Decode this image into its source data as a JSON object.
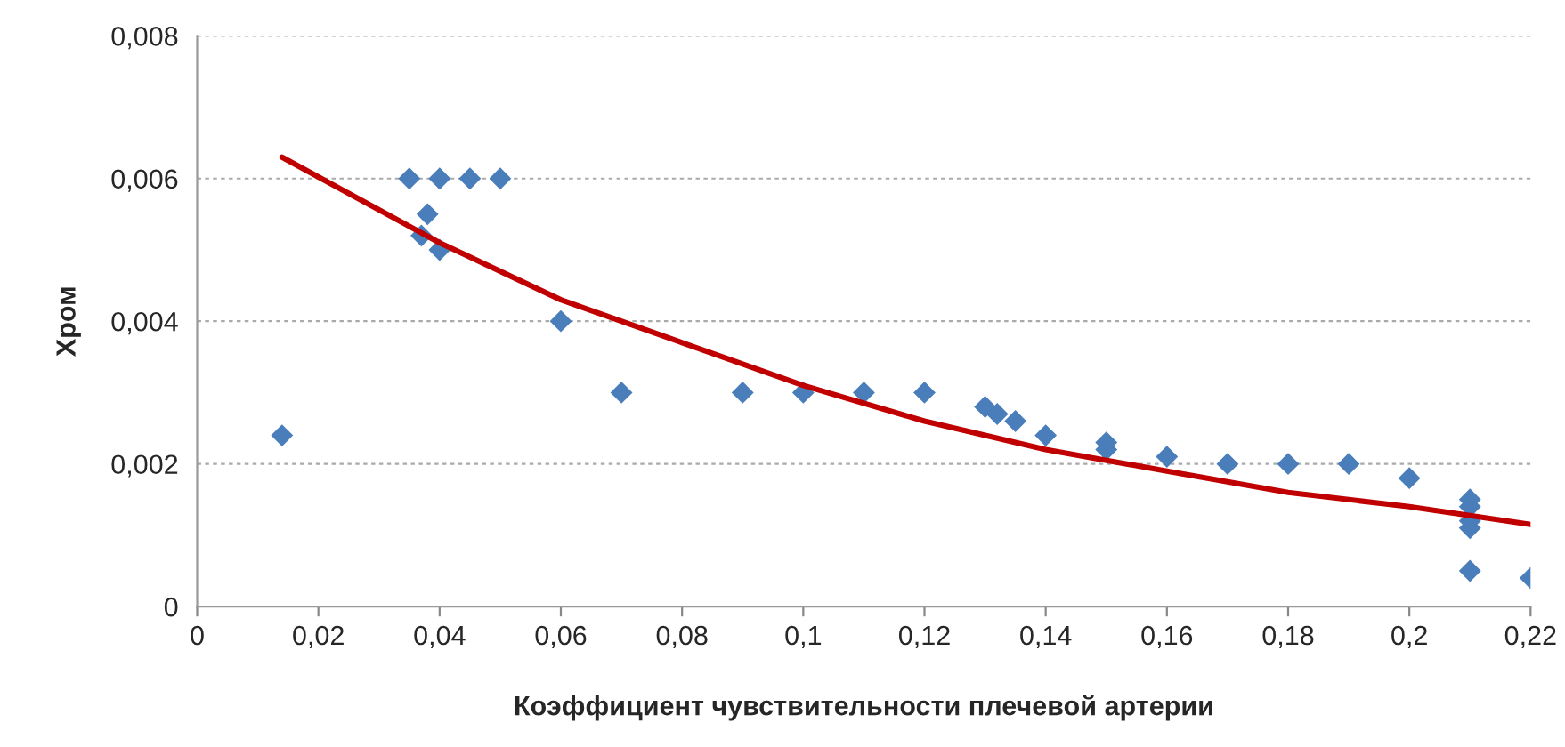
{
  "chart_data": {
    "type": "scatter",
    "xlabel": "Коэффициент чувствительности плечевой артерии",
    "ylabel": "Хром",
    "xlim": [
      0,
      0.22
    ],
    "ylim": [
      0,
      0.008
    ],
    "xticks": [
      {
        "value": 0,
        "label": "0"
      },
      {
        "value": 0.02,
        "label": "0,02"
      },
      {
        "value": 0.04,
        "label": "0,04"
      },
      {
        "value": 0.06,
        "label": "0,06"
      },
      {
        "value": 0.08,
        "label": "0,08"
      },
      {
        "value": 0.1,
        "label": "0,1"
      },
      {
        "value": 0.12,
        "label": "0,12"
      },
      {
        "value": 0.14,
        "label": "0,14"
      },
      {
        "value": 0.16,
        "label": "0,16"
      },
      {
        "value": 0.18,
        "label": "0,18"
      },
      {
        "value": 0.2,
        "label": "0,2"
      },
      {
        "value": 0.22,
        "label": "0,22"
      }
    ],
    "yticks": [
      {
        "value": 0,
        "label": "0"
      },
      {
        "value": 0.002,
        "label": "0,002"
      },
      {
        "value": 0.004,
        "label": "0,004"
      },
      {
        "value": 0.006,
        "label": "0,006"
      },
      {
        "value": 0.008,
        "label": "0,008"
      }
    ],
    "grid": "y",
    "legend": false,
    "series": [
      {
        "color": "#4a7ebb",
        "marker": "diamond",
        "x": [
          0.014,
          0.035,
          0.037,
          0.038,
          0.04,
          0.04,
          0.045,
          0.05,
          0.06,
          0.07,
          0.09,
          0.1,
          0.11,
          0.12,
          0.13,
          0.132,
          0.135,
          0.14,
          0.15,
          0.15,
          0.16,
          0.17,
          0.18,
          0.19,
          0.2,
          0.21,
          0.21,
          0.21,
          0.21,
          0.21,
          0.22
        ],
        "values": [
          0.0024,
          0.006,
          0.0052,
          0.0055,
          0.006,
          0.005,
          0.006,
          0.006,
          0.004,
          0.003,
          0.003,
          0.003,
          0.003,
          0.003,
          0.0028,
          0.0027,
          0.0026,
          0.0024,
          0.0023,
          0.0022,
          0.0021,
          0.002,
          0.002,
          0.002,
          0.0018,
          0.0015,
          0.0014,
          0.0012,
          0.0011,
          0.0005,
          0.0004
        ]
      },
      {
        "type": "line",
        "color": "#c00000",
        "marker": "none",
        "line_style": "solid",
        "x": [
          0.014,
          0.04,
          0.06,
          0.08,
          0.1,
          0.12,
          0.14,
          0.16,
          0.18,
          0.2,
          0.22
        ],
        "values": [
          0.0063,
          0.0051,
          0.0043,
          0.0037,
          0.0031,
          0.0026,
          0.0022,
          0.0019,
          0.0016,
          0.0014,
          0.00115
        ]
      }
    ]
  }
}
